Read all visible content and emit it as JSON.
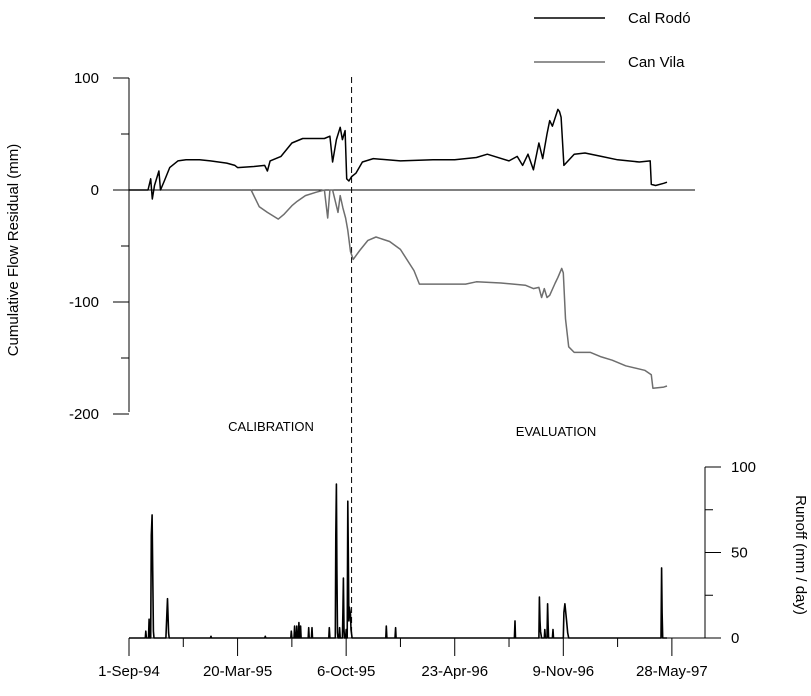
{
  "chart_data": {
    "type": "line",
    "x_tick_labels": [
      "1-Sep-94",
      "20-Mar-95",
      "6-Oct-95",
      "23-Apr-96",
      "9-Nov-96",
      "28-May-97"
    ],
    "x_domain_days": [
      0,
      1061
    ],
    "x_tick_days": [
      0,
      200,
      400,
      600,
      800,
      1000
    ],
    "split_day": 410,
    "annotations": [
      "CALIBRATION",
      "EVALUATION"
    ],
    "residual_axis": {
      "label": "Cumulative Flow Residual (mm)",
      "ylim": [
        -250,
        100
      ],
      "ticks": [
        100,
        0,
        -100,
        -200
      ],
      "minor_ticks": [
        50,
        -50,
        -150
      ]
    },
    "runoff_axis": {
      "label": "Runoff (mm / day)",
      "ylim": [
        0,
        100
      ],
      "ticks": [
        100,
        50,
        0
      ],
      "minor_ticks": [
        75,
        25
      ]
    },
    "legend": {
      "placement": "top-right"
    },
    "series": [
      {
        "name": "Cal Rodó",
        "color": "#000000",
        "axis": "residual",
        "points": [
          [
            0,
            0
          ],
          [
            35,
            0
          ],
          [
            40,
            10
          ],
          [
            43,
            -8
          ],
          [
            47,
            4
          ],
          [
            55,
            17
          ],
          [
            58,
            0
          ],
          [
            65,
            8
          ],
          [
            75,
            20
          ],
          [
            90,
            26
          ],
          [
            105,
            27
          ],
          [
            130,
            27
          ],
          [
            150,
            26
          ],
          [
            180,
            24
          ],
          [
            195,
            22
          ],
          [
            200,
            20
          ],
          [
            230,
            21
          ],
          [
            250,
            22
          ],
          [
            255,
            17
          ],
          [
            260,
            26
          ],
          [
            280,
            30
          ],
          [
            300,
            42
          ],
          [
            320,
            46
          ],
          [
            340,
            46
          ],
          [
            360,
            46
          ],
          [
            370,
            48
          ],
          [
            375,
            25
          ],
          [
            382,
            45
          ],
          [
            389,
            56
          ],
          [
            393,
            45
          ],
          [
            398,
            53
          ],
          [
            401,
            10
          ],
          [
            405,
            8
          ],
          [
            410,
            12
          ],
          [
            418,
            15
          ],
          [
            430,
            25
          ],
          [
            450,
            28
          ],
          [
            500,
            26
          ],
          [
            560,
            27
          ],
          [
            600,
            27
          ],
          [
            640,
            29
          ],
          [
            660,
            32
          ],
          [
            700,
            26
          ],
          [
            715,
            30
          ],
          [
            725,
            22
          ],
          [
            735,
            32
          ],
          [
            745,
            18
          ],
          [
            755,
            42
          ],
          [
            762,
            28
          ],
          [
            770,
            50
          ],
          [
            775,
            62
          ],
          [
            780,
            57
          ],
          [
            790,
            72
          ],
          [
            793,
            70
          ],
          [
            796,
            65
          ],
          [
            801,
            22
          ],
          [
            820,
            32
          ],
          [
            840,
            33
          ],
          [
            870,
            30
          ],
          [
            900,
            27
          ],
          [
            940,
            25
          ],
          [
            960,
            26
          ],
          [
            962,
            5
          ],
          [
            970,
            4
          ],
          [
            985,
            6
          ],
          [
            991,
            7
          ]
        ]
      },
      {
        "name": "Can Vila",
        "color": "#6e6e6e",
        "axis": "residual",
        "points": [
          [
            225,
            0
          ],
          [
            240,
            -15
          ],
          [
            255,
            -20
          ],
          [
            275,
            -26
          ],
          [
            285,
            -22
          ],
          [
            300,
            -14
          ],
          [
            310,
            -10
          ],
          [
            325,
            -5
          ],
          [
            345,
            -2
          ],
          [
            360,
            0
          ],
          [
            366,
            -25
          ],
          [
            370,
            0
          ],
          [
            375,
            0
          ],
          [
            380,
            -10
          ],
          [
            385,
            -20
          ],
          [
            389,
            -5
          ],
          [
            394,
            -16
          ],
          [
            399,
            -25
          ],
          [
            403,
            -36
          ],
          [
            408,
            -55
          ],
          [
            413,
            -62
          ],
          [
            425,
            -54
          ],
          [
            440,
            -45
          ],
          [
            455,
            -42
          ],
          [
            480,
            -46
          ],
          [
            500,
            -53
          ],
          [
            525,
            -72
          ],
          [
            535,
            -84
          ],
          [
            580,
            -84
          ],
          [
            620,
            -84
          ],
          [
            640,
            -82
          ],
          [
            685,
            -83
          ],
          [
            730,
            -85
          ],
          [
            745,
            -88
          ],
          [
            755,
            -87
          ],
          [
            760,
            -96
          ],
          [
            765,
            -88
          ],
          [
            770,
            -96
          ],
          [
            775,
            -94
          ],
          [
            785,
            -83
          ],
          [
            790,
            -78
          ],
          [
            797,
            -70
          ],
          [
            800,
            -74
          ],
          [
            804,
            -115
          ],
          [
            810,
            -140
          ],
          [
            820,
            -145
          ],
          [
            850,
            -145
          ],
          [
            870,
            -149
          ],
          [
            890,
            -152
          ],
          [
            915,
            -157
          ],
          [
            950,
            -161
          ],
          [
            962,
            -165
          ],
          [
            965,
            -177
          ],
          [
            985,
            -176
          ],
          [
            991,
            -175
          ]
        ]
      },
      {
        "name": "",
        "color": "#000000",
        "axis": "runoff",
        "points": [
          [
            0,
            0
          ],
          [
            30,
            0
          ],
          [
            31,
            4
          ],
          [
            32,
            0
          ],
          [
            36,
            0
          ],
          [
            37,
            11
          ],
          [
            38,
            0
          ],
          [
            40,
            0
          ],
          [
            41,
            60
          ],
          [
            42.5,
            72
          ],
          [
            44,
            30
          ],
          [
            45,
            4
          ],
          [
            46,
            0
          ],
          [
            68,
            0
          ],
          [
            70,
            16
          ],
          [
            71,
            23
          ],
          [
            73,
            3
          ],
          [
            74,
            0
          ],
          [
            150,
            0
          ],
          [
            151,
            1
          ],
          [
            152,
            0
          ],
          [
            250,
            0
          ],
          [
            251,
            1
          ],
          [
            252,
            0
          ],
          [
            298,
            0
          ],
          [
            299,
            4
          ],
          [
            300,
            0
          ],
          [
            304,
            0
          ],
          [
            305,
            7
          ],
          [
            306,
            0
          ],
          [
            308,
            0
          ],
          [
            309,
            7
          ],
          [
            310,
            0
          ],
          [
            312,
            0
          ],
          [
            313,
            9
          ],
          [
            314,
            0
          ],
          [
            315,
            0
          ],
          [
            316,
            7
          ],
          [
            317,
            0
          ],
          [
            330,
            0
          ],
          [
            331,
            6
          ],
          [
            332,
            0
          ],
          [
            336,
            0
          ],
          [
            337,
            6
          ],
          [
            338,
            0
          ],
          [
            368,
            0
          ],
          [
            369,
            6
          ],
          [
            370,
            0
          ],
          [
            380,
            0
          ],
          [
            381,
            60
          ],
          [
            382,
            90
          ],
          [
            383,
            40
          ],
          [
            384,
            3
          ],
          [
            385,
            0
          ],
          [
            387,
            0
          ],
          [
            388,
            6
          ],
          [
            389,
            0
          ],
          [
            393,
            0
          ],
          [
            394,
            15
          ],
          [
            395,
            35
          ],
          [
            396,
            5
          ],
          [
            397,
            0
          ],
          [
            399,
            0
          ],
          [
            400,
            5
          ],
          [
            401,
            0
          ],
          [
            402,
            0
          ],
          [
            403,
            80
          ],
          [
            404,
            50
          ],
          [
            405,
            10
          ],
          [
            406,
            18
          ],
          [
            408,
            14
          ],
          [
            409,
            5
          ],
          [
            411,
            0
          ],
          [
            473,
            0
          ],
          [
            474,
            7
          ],
          [
            475,
            0
          ],
          [
            490,
            0
          ],
          [
            491,
            6
          ],
          [
            492,
            0
          ],
          [
            710,
            0
          ],
          [
            711,
            10
          ],
          [
            712,
            0
          ],
          [
            755,
            0
          ],
          [
            756,
            24
          ],
          [
            757,
            10
          ],
          [
            758,
            4
          ],
          [
            760,
            0
          ],
          [
            765,
            0
          ],
          [
            766,
            5
          ],
          [
            767,
            0
          ],
          [
            770,
            0
          ],
          [
            771,
            20
          ],
          [
            772,
            8
          ],
          [
            773,
            0
          ],
          [
            780,
            0
          ],
          [
            781,
            5
          ],
          [
            782,
            0
          ],
          [
            800,
            0
          ],
          [
            801,
            15
          ],
          [
            803,
            20
          ],
          [
            806,
            10
          ],
          [
            808,
            3
          ],
          [
            810,
            0
          ],
          [
            980,
            0
          ],
          [
            981,
            41
          ],
          [
            982,
            15
          ],
          [
            983,
            0
          ],
          [
            991,
            0
          ]
        ]
      }
    ]
  }
}
